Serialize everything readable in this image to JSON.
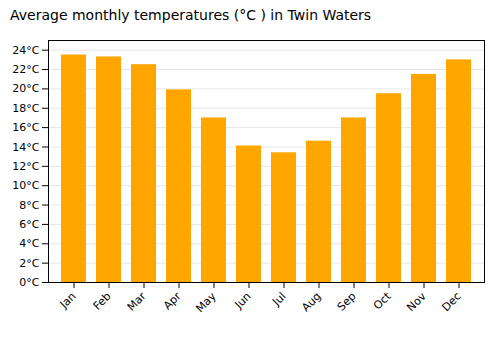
{
  "chart_data": {
    "type": "bar",
    "title": "Average monthly temperatures (°C ) in Twin Waters",
    "categories": [
      "Jan",
      "Feb",
      "Mar",
      "Apr",
      "May",
      "Jun",
      "Jul",
      "Aug",
      "Sep",
      "Oct",
      "Nov",
      "Dec"
    ],
    "values": [
      23.5,
      23.3,
      22.5,
      19.9,
      17.0,
      14.1,
      13.4,
      14.6,
      17.0,
      19.5,
      21.5,
      23.0
    ],
    "color": "#FFA500",
    "ylim": [
      0,
      25
    ],
    "yticks": [
      {
        "value": 0,
        "label": "0°C"
      },
      {
        "value": 2,
        "label": "2°C"
      },
      {
        "value": 4,
        "label": "4°C"
      },
      {
        "value": 6,
        "label": "6°C"
      },
      {
        "value": 8,
        "label": "8°C"
      },
      {
        "value": 10,
        "label": "10°C"
      },
      {
        "value": 12,
        "label": "12°C"
      },
      {
        "value": 14,
        "label": "14°C"
      },
      {
        "value": 16,
        "label": "16°C"
      },
      {
        "value": 18,
        "label": "18°C"
      },
      {
        "value": 20,
        "label": "20°C"
      },
      {
        "value": 22,
        "label": "22°C"
      },
      {
        "value": 24,
        "label": "24°C"
      }
    ],
    "grid": true
  }
}
